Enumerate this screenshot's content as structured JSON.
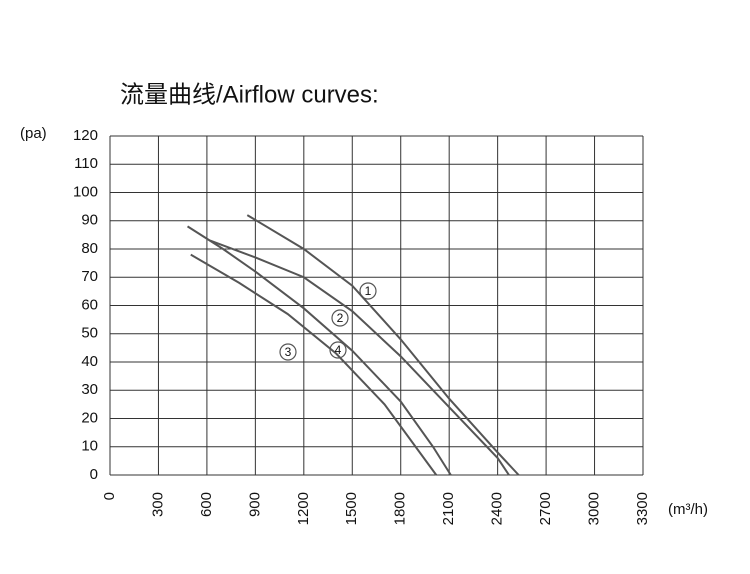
{
  "chart_data": {
    "type": "line",
    "title": "流量曲线/Airflow curves:",
    "y_label": "(pa)",
    "x_label": "(m³/h)",
    "xlim": [
      0,
      3300
    ],
    "xticks": [
      0,
      300,
      600,
      900,
      1200,
      1500,
      1800,
      2100,
      2400,
      2700,
      3000,
      3300
    ],
    "ylim": [
      0,
      120
    ],
    "yticks": [
      0,
      10,
      20,
      30,
      40,
      50,
      60,
      70,
      80,
      90,
      100,
      110,
      120
    ],
    "grid": true,
    "series": [
      {
        "name": "1",
        "color": "#555555",
        "x": [
          850,
          1200,
          1500,
          1800,
          2100,
          2400,
          2530
        ],
        "values": [
          92,
          80,
          67,
          48,
          27,
          8,
          0
        ]
      },
      {
        "name": "2",
        "color": "#555555",
        "x": [
          620,
          900,
          1200,
          1500,
          1800,
          2100,
          2400,
          2470
        ],
        "values": [
          83,
          77,
          70,
          58,
          42,
          24,
          6,
          0
        ]
      },
      {
        "name": "3",
        "color": "#555555",
        "x": [
          500,
          800,
          1100,
          1400,
          1700,
          2020
        ],
        "values": [
          78,
          68,
          57,
          43,
          25,
          0
        ]
      },
      {
        "name": "4",
        "color": "#555555",
        "x": [
          480,
          700,
          900,
          1200,
          1500,
          1800,
          2000,
          2110
        ],
        "values": [
          88,
          80,
          72,
          59,
          44,
          26,
          10,
          0
        ]
      }
    ]
  }
}
